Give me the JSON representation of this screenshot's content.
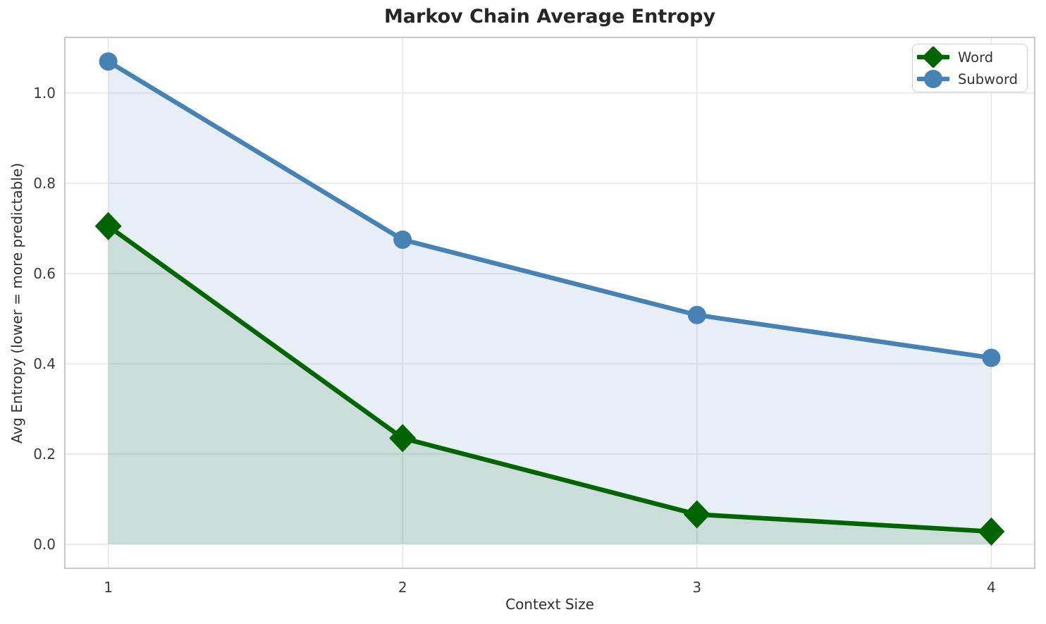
{
  "chart_data": {
    "type": "line",
    "title": "Markov Chain Average Entropy",
    "xlabel": "Context Size",
    "ylabel": "Avg Entropy (lower = more predictable)",
    "x": [
      1,
      2,
      3,
      4
    ],
    "series": [
      {
        "name": "Word",
        "values": [
          0.705,
          0.235,
          0.066,
          0.028
        ],
        "color": "#006400",
        "marker": "diamond",
        "fill_to_zero": true,
        "fill_alpha": 0.13
      },
      {
        "name": "Subword",
        "values": [
          1.07,
          0.675,
          0.508,
          0.413
        ],
        "color": "#4682b4",
        "marker": "circle",
        "fill_to_zero": true,
        "fill_alpha": 0.13
      }
    ],
    "xticks": {
      "values": [
        1,
        2,
        3,
        4
      ],
      "labels": [
        "1",
        "2",
        "3",
        "4"
      ]
    },
    "yticks": {
      "values": [
        0.0,
        0.2,
        0.4,
        0.6,
        0.8,
        1.0
      ],
      "labels": [
        "0.0",
        "0.2",
        "0.4",
        "0.6",
        "0.8",
        "1.0"
      ]
    },
    "xlim": [
      0.8525,
      4.1475
    ],
    "ylim": [
      -0.0535,
      1.1235
    ],
    "grid": true,
    "legend": {
      "position": "upper right",
      "items": [
        "Word",
        "Subword"
      ]
    }
  },
  "styles": {
    "background": "#ffffff",
    "grid_color": "#e8e8e8",
    "spine_color": "#c9c9c9",
    "tick_color": "#3a3a3a",
    "title_color": "#262626",
    "axis_label_color": "#2e2e2e",
    "legend_border": "#d2d2d2",
    "legend_text": "#333333",
    "line_width": 6.5
  }
}
